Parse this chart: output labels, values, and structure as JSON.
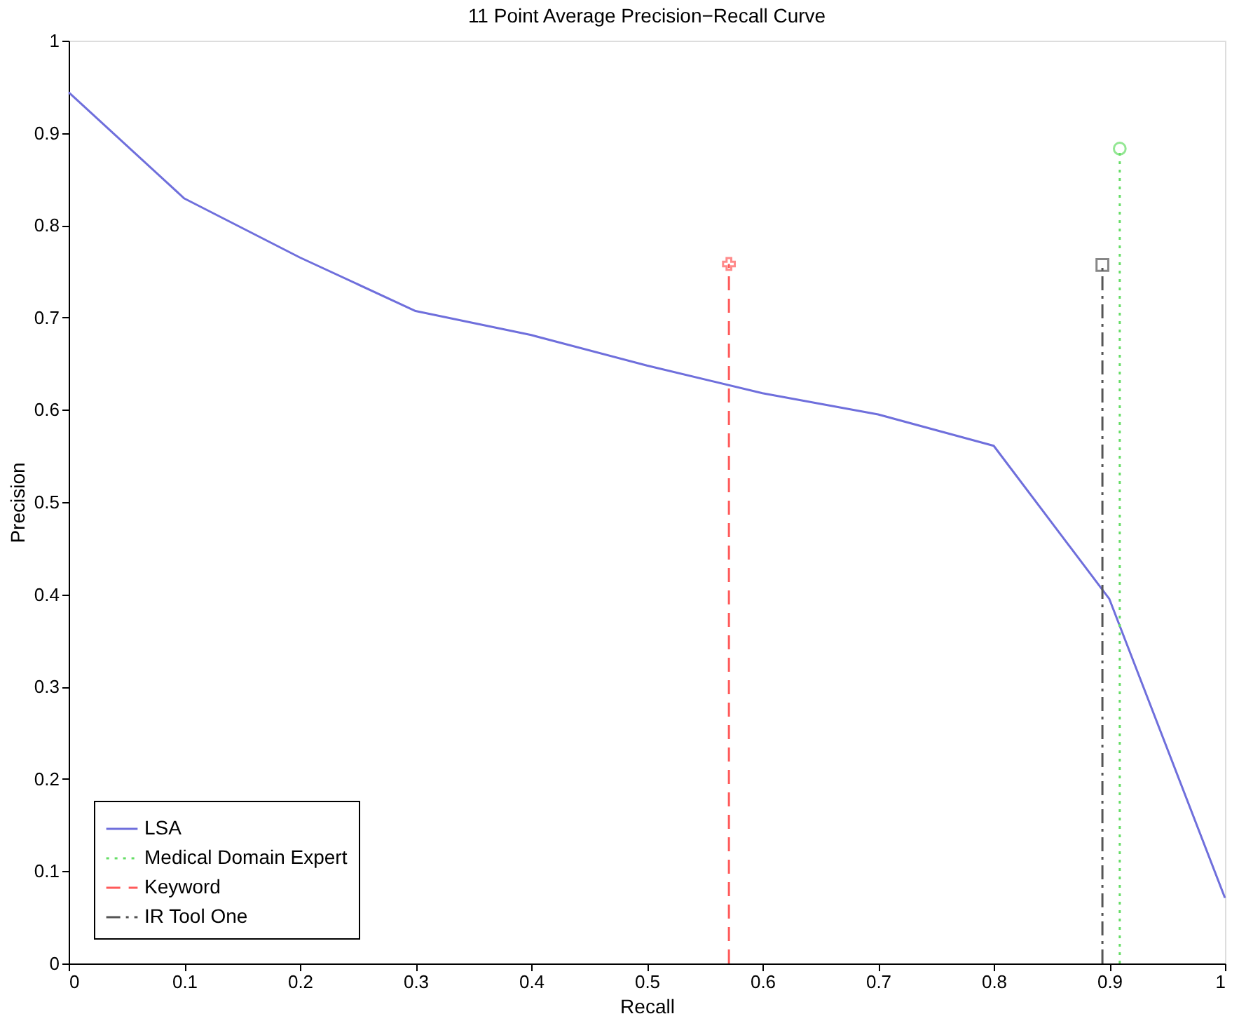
{
  "chart_data": {
    "type": "line",
    "title": "11 Point Average Precision−Recall Curve",
    "xlabel": "Recall",
    "ylabel": "Precision",
    "xlim": [
      0,
      1
    ],
    "ylim": [
      0,
      1
    ],
    "xticks": [
      0,
      0.1,
      0.2,
      0.3,
      0.4,
      0.5,
      0.6,
      0.7,
      0.8,
      0.9,
      1
    ],
    "yticks": [
      0,
      0.1,
      0.2,
      0.3,
      0.4,
      0.5,
      0.6,
      0.7,
      0.8,
      0.9,
      1
    ],
    "grid": false,
    "legend": "bottom left",
    "series": [
      {
        "name": "LSA",
        "color": "#6f6fdc",
        "line_style": "solid",
        "marker": "none",
        "x": [
          0,
          0.1,
          0.2,
          0.3,
          0.4,
          0.5,
          0.6,
          0.7,
          0.8,
          0.9,
          1
        ],
        "values": [
          0.944,
          0.829,
          0.765,
          0.707,
          0.681,
          0.648,
          0.618,
          0.595,
          0.561,
          0.395,
          0.071
        ]
      },
      {
        "name": "Medical Domain Expert",
        "color": "#66dd66",
        "line_style": "dotted",
        "marker": "circle",
        "x": [
          0.909,
          0.909
        ],
        "values": [
          0,
          0.883
        ]
      },
      {
        "name": "Keyword",
        "color": "#ff5a5a",
        "line_style": "dashed",
        "marker": "cross",
        "x": [
          0.571,
          0.571
        ],
        "values": [
          0,
          0.758
        ]
      },
      {
        "name": "IR Tool One",
        "color": "#555555",
        "line_style": "dashdot",
        "marker": "square",
        "x": [
          0.894,
          0.894
        ],
        "values": [
          0,
          0.757
        ]
      }
    ]
  }
}
